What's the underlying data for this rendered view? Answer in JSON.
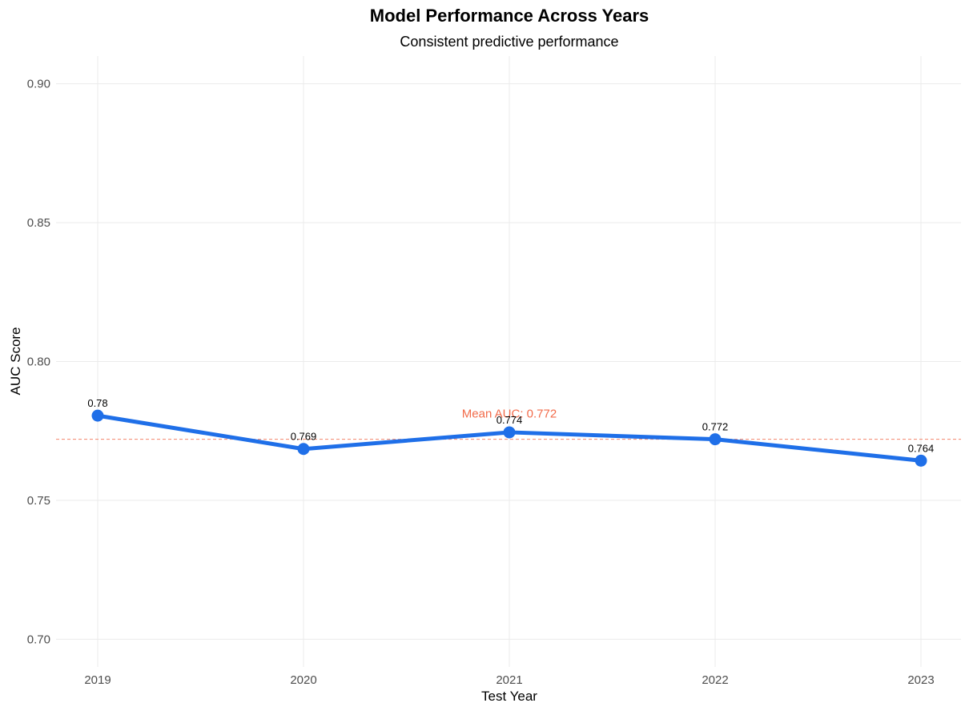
{
  "chart_data": {
    "type": "line",
    "title": "Model Performance Across Years",
    "subtitle": "Consistent predictive performance",
    "xlabel": "Test Year",
    "ylabel": "AUC Score",
    "x": [
      "2019",
      "2020",
      "2021",
      "2022",
      "2023"
    ],
    "values": [
      0.7805,
      0.7685,
      0.7745,
      0.772,
      0.7643
    ],
    "data_labels": [
      "0.78",
      "0.769",
      "0.774",
      "0.772",
      "0.764"
    ],
    "ylim": [
      0.69,
      0.91
    ],
    "yticks": [
      0.7,
      0.75,
      0.8,
      0.85,
      0.9
    ],
    "ytick_labels": [
      "0.70",
      "0.75",
      "0.80",
      "0.85",
      "0.90"
    ],
    "grid": true,
    "reference_line": {
      "value": 0.772,
      "label": "Mean AUC: 0.772",
      "style": "dashed"
    },
    "colors": {
      "line": "#1f6fe8",
      "reference": "#f4846a",
      "annotation": "#f26b4a"
    }
  }
}
